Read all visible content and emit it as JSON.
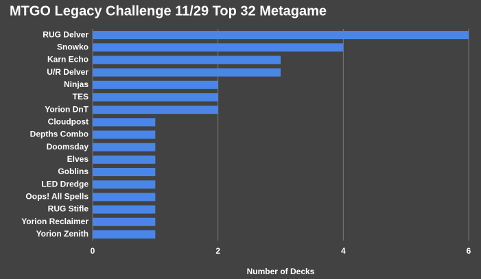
{
  "chart_data": {
    "type": "barh",
    "title": "MTGO Legacy Challenge 11/29 Top 32 Metagame",
    "x_label": "Number of Decks",
    "categories": [
      "RUG Delver",
      "Snowko",
      "Karn Echo",
      "U/R Delver",
      "Ninjas",
      "TES",
      "Yorion DnT",
      "Cloudpost",
      "Depths Combo",
      "Doomsday",
      "Elves",
      "Goblins",
      "LED Dredge",
      "Oops! All Spells",
      "RUG Stifle",
      "Yorion Reclaimer",
      "Yorion Zenith"
    ],
    "values": [
      6,
      4,
      3,
      3,
      2,
      2,
      2,
      1,
      1,
      1,
      1,
      1,
      1,
      1,
      1,
      1,
      1
    ],
    "color": "#4a86e8",
    "xlim": [
      0,
      6
    ],
    "xticks": [
      0,
      2,
      4,
      6
    ],
    "grid": true
  }
}
